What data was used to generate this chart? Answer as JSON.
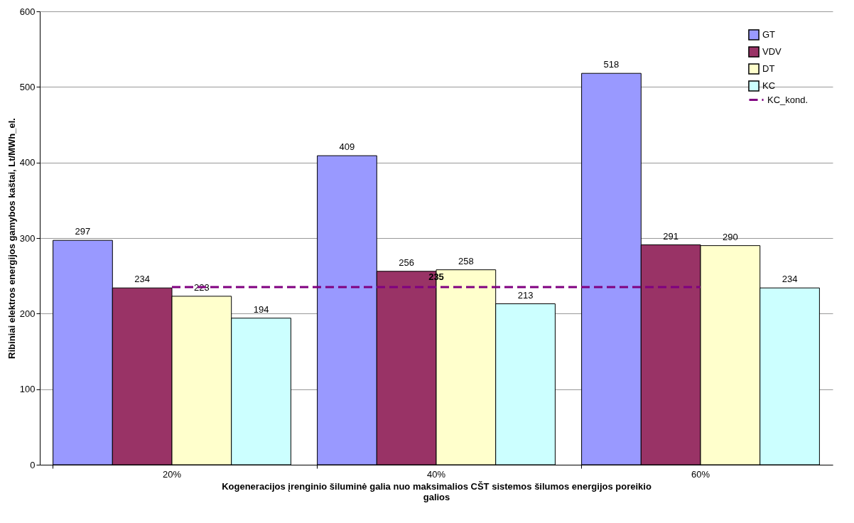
{
  "chart_data": {
    "type": "bar",
    "xlabel": "Kogeneracijos įrenginio šiluminė galia nuo maksimalios CŠT sistemos šilumos energijos poreikio galios",
    "ylabel": "Ribiniai elektros energijos gamybos kaštai, Lt/MWh_el.",
    "categories": [
      "20%",
      "40%",
      "60%"
    ],
    "series": [
      {
        "name": "GT",
        "color": "#9999ff",
        "values": [
          297,
          409,
          518
        ]
      },
      {
        "name": "VDV",
        "color": "#993366",
        "values": [
          234,
          256,
          291
        ]
      },
      {
        "name": "DT",
        "color": "#ffffcc",
        "values": [
          223,
          258,
          290
        ]
      },
      {
        "name": "KC",
        "color": "#ccffff",
        "values": [
          194,
          213,
          234
        ]
      },
      {
        "name": "KC_kond.",
        "type": "line",
        "color": "#800080",
        "line_style": "dashed",
        "values": [
          235,
          235,
          235
        ],
        "value_labels": [
          null,
          "235",
          null
        ]
      }
    ],
    "ylim": [
      0,
      600
    ],
    "yticks": [
      0,
      100,
      200,
      300,
      400,
      500,
      600
    ],
    "grid": "y",
    "legend": "top right",
    "data_labels": true
  }
}
